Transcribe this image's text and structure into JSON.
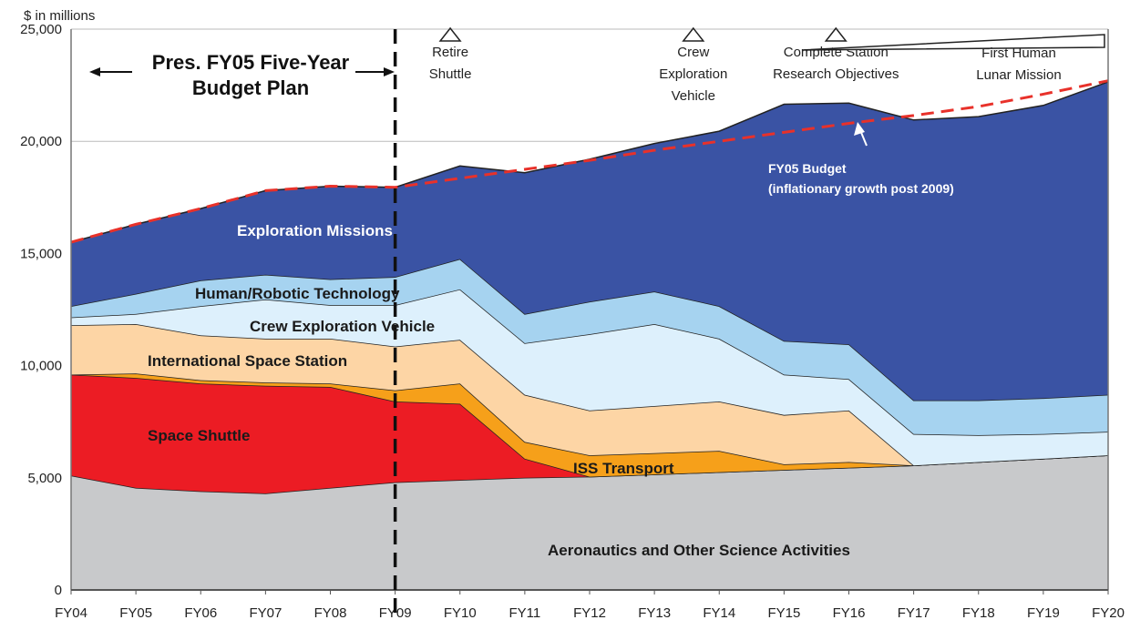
{
  "chart_data": {
    "type": "area",
    "stacked": true,
    "ylabel": "$ in millions",
    "ylim": [
      0,
      25000
    ],
    "yticks": [
      "0",
      "5,000",
      "10,000",
      "15,000",
      "20,000",
      "25,000"
    ],
    "ytick_values": [
      0,
      5000,
      10000,
      15000,
      20000,
      25000
    ],
    "grid": true,
    "categories": [
      "FY04",
      "FY05",
      "FY06",
      "FY07",
      "FY08",
      "FY09",
      "FY10",
      "FY11",
      "FY12",
      "FY13",
      "FY14",
      "FY15",
      "FY16",
      "FY17",
      "FY18",
      "FY19",
      "FY20"
    ],
    "series": [
      {
        "name": "Aeronautics and Other Science Activities",
        "color": "#c8c9cb",
        "values": [
          5100,
          4550,
          4400,
          4300,
          4550,
          4800,
          4900,
          5000,
          5050,
          5150,
          5250,
          5350,
          5450,
          5550,
          5700,
          5850,
          6000
        ]
      },
      {
        "name": "Space Shuttle",
        "color": "#ec1c24",
        "values": [
          4500,
          4900,
          4800,
          4800,
          4500,
          3600,
          3400,
          850,
          0,
          0,
          0,
          0,
          0,
          0,
          0,
          0,
          0
        ]
      },
      {
        "name": "ISS Transport",
        "color": "#f6a01a",
        "values": [
          0,
          200,
          150,
          150,
          150,
          500,
          900,
          750,
          950,
          950,
          950,
          250,
          250,
          0,
          0,
          0,
          0
        ]
      },
      {
        "name": "International Space Station",
        "color": "#fdd5a5",
        "values": [
          2200,
          2200,
          2000,
          1950,
          2000,
          1950,
          1950,
          2100,
          2000,
          2100,
          2200,
          2200,
          2300,
          0,
          0,
          0,
          0
        ]
      },
      {
        "name": "Crew Exploration Vehicle",
        "color": "#ddf0fc",
        "values": [
          350,
          450,
          1300,
          1750,
          1500,
          1850,
          2250,
          2300,
          3400,
          3650,
          2800,
          1800,
          1400,
          1400,
          1200,
          1100,
          1050
        ]
      },
      {
        "name": "Human/Robotic Technology",
        "color": "#a6d3f0",
        "values": [
          500,
          900,
          1150,
          1100,
          1150,
          1250,
          1350,
          1300,
          1450,
          1450,
          1450,
          1500,
          1550,
          1500,
          1550,
          1600,
          1650
        ]
      },
      {
        "name": "Exploration Missions",
        "color": "#3a53a4",
        "values": [
          2850,
          3100,
          3200,
          3750,
          4150,
          4000,
          4150,
          6300,
          6350,
          6600,
          7800,
          10550,
          10750,
          12500,
          12650,
          13050,
          13950
        ]
      }
    ],
    "budget_line": {
      "label": "FY05 Budget",
      "sublabel": "(inflationary growth post 2009)",
      "color": "#e8312a",
      "values": [
        15500,
        16300,
        17000,
        17800,
        18000,
        17950,
        18350,
        18750,
        19150,
        19600,
        20000,
        20400,
        20800,
        21150,
        21550,
        22100,
        22700
      ]
    },
    "plan_annotation": {
      "line1": "Pres. FY05 Five-Year",
      "line2": "Budget Plan",
      "boundary": "FY09"
    },
    "milestones": [
      {
        "lines": [
          "Retire",
          "Shuttle"
        ],
        "at": 5.85
      },
      {
        "lines": [
          "Crew",
          "Exploration",
          "Vehicle"
        ],
        "at": 9.6
      },
      {
        "lines": [
          "Complete Station",
          "Research Objectives"
        ],
        "at": 11.8
      }
    ],
    "lunar_milestone": {
      "lines": [
        "First Human",
        "Lunar Mission"
      ]
    }
  }
}
